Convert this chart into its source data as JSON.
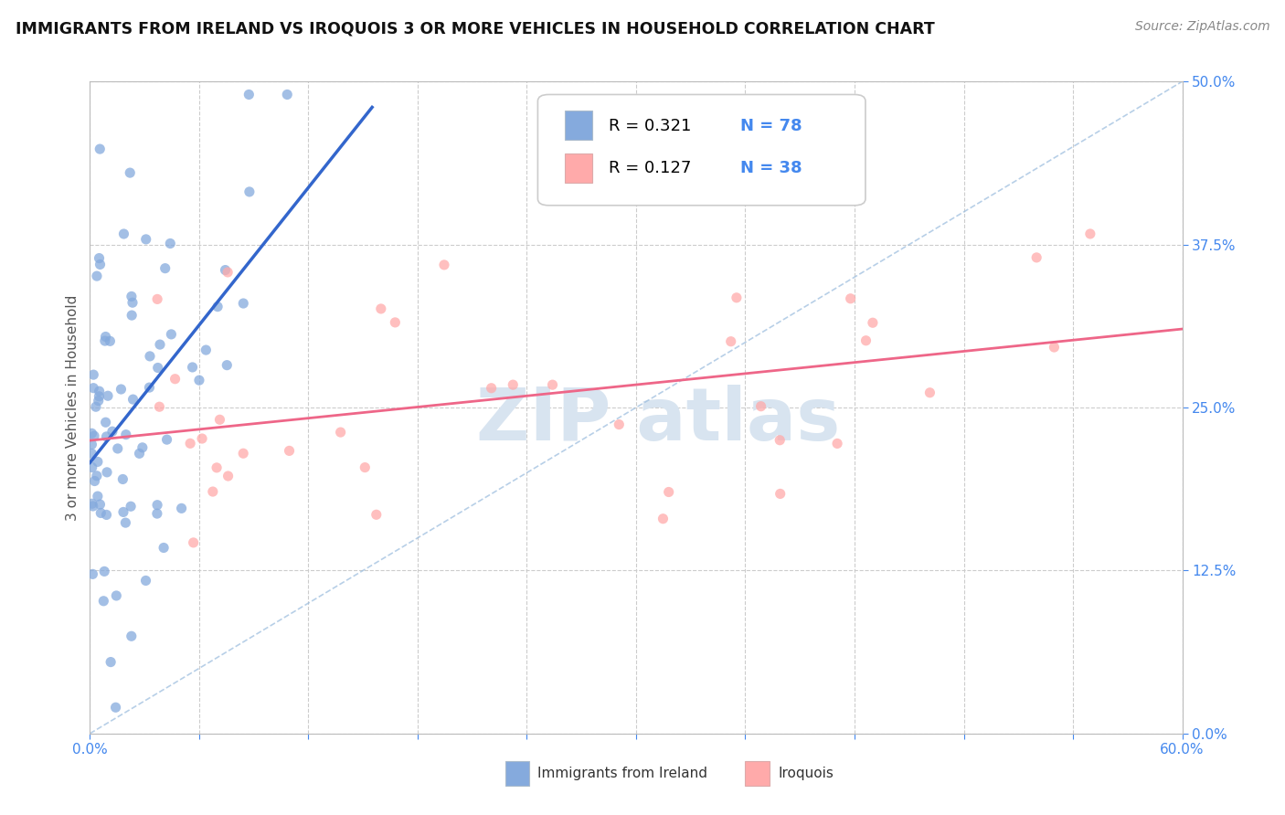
{
  "title": "IMMIGRANTS FROM IRELAND VS IROQUOIS 3 OR MORE VEHICLES IN HOUSEHOLD CORRELATION CHART",
  "source": "Source: ZipAtlas.com",
  "xmin": 0.0,
  "xmax": 0.6,
  "ymin": 0.0,
  "ymax": 0.5,
  "legend1_r": "R = 0.321",
  "legend1_n": "N = 78",
  "legend2_r": "R = 0.127",
  "legend2_n": "N = 38",
  "color_ireland": "#85AADD",
  "color_iroquois": "#FFAAAA",
  "color_ireland_line": "#3366CC",
  "color_iroquois_line": "#EE6688",
  "color_diag": "#99BBDD",
  "color_tick": "#4488EE",
  "color_grid": "#CCCCCC",
  "ylabel": "3 or more Vehicles in Household",
  "watermark_color": "#D8E4F0"
}
